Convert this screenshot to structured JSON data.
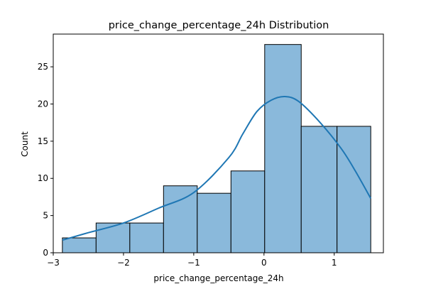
{
  "chart_data": {
    "type": "bar",
    "title": "price_change_percentage_24h Distribution",
    "xlabel": "price_change_percentage_24h",
    "ylabel": "Count",
    "xlim": [
      -3.0,
      1.7
    ],
    "ylim": [
      0,
      29.4
    ],
    "x_ticks": [
      -3,
      -2,
      -1,
      0,
      1
    ],
    "y_ticks": [
      0,
      5,
      10,
      15,
      20,
      25
    ],
    "bin_edges": [
      -2.87,
      -2.39,
      -1.91,
      -1.43,
      -0.95,
      -0.47,
      0.01,
      0.53,
      1.04,
      1.52
    ],
    "values": [
      2,
      4,
      4,
      9,
      8,
      11,
      28,
      17,
      17
    ],
    "kde": {
      "x": [
        -2.87,
        -2.5,
        -2.0,
        -1.5,
        -1.0,
        -0.5,
        -0.3,
        -0.1,
        0.1,
        0.3,
        0.5,
        0.8,
        1.1,
        1.3,
        1.52
      ],
      "y": [
        1.7,
        2.7,
        4.0,
        6.0,
        8.1,
        12.8,
        16.0,
        19.0,
        20.5,
        21.0,
        20.3,
        17.5,
        14.0,
        11.0,
        7.3
      ]
    },
    "grid": false,
    "colors": {
      "bar_fill": "#8ab9db",
      "bar_edge": "#000000",
      "kde_line": "#1f77b4"
    }
  }
}
